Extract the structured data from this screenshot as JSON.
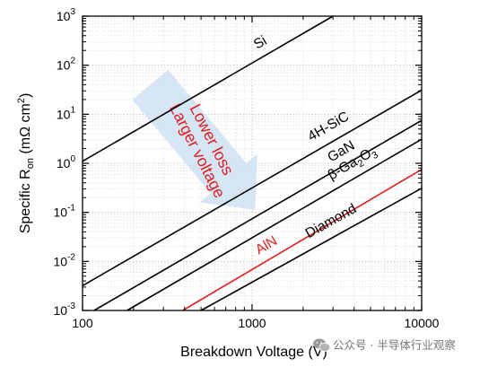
{
  "chart_data": {
    "type": "line",
    "xlabel": "Breakdown Voltage (V)",
    "ylabel": {
      "prefix": "Specific R",
      "sub": "on",
      "unit_open": " (mΩ cm",
      "sup": "2",
      "unit_close": ")"
    },
    "x_scale": "log",
    "y_scale": "log",
    "xlim": [
      100,
      10000
    ],
    "ylim": [
      0.001,
      1000
    ],
    "grid": true,
    "x_ticks": [
      {
        "value": 100,
        "label": "100"
      },
      {
        "value": 1000,
        "label": "1000"
      },
      {
        "value": 10000,
        "label": "10000"
      }
    ],
    "y_ticks": [
      {
        "value": 1000,
        "base": "10",
        "exp": "3"
      },
      {
        "value": 100,
        "base": "10",
        "exp": "2"
      },
      {
        "value": 10,
        "base": "10",
        "exp": "1"
      },
      {
        "value": 1,
        "base": "10",
        "exp": "0"
      },
      {
        "value": 0.1,
        "base": "10",
        "exp": "-1"
      },
      {
        "value": 0.01,
        "base": "10",
        "exp": "-2"
      },
      {
        "value": 0.001,
        "base": "10",
        "exp": "-3"
      }
    ],
    "series": [
      {
        "name": "Si",
        "color": "#000000",
        "x": [
          100,
          3000
        ],
        "y": [
          1.1,
          1000
        ]
      },
      {
        "name": "4H-SiC",
        "color": "#000000",
        "x": [
          100,
          10000
        ],
        "y": [
          0.0032,
          31
        ]
      },
      {
        "name": "GaN",
        "color": "#000000",
        "x": [
          117,
          10000
        ],
        "y": [
          0.001,
          7.5
        ]
      },
      {
        "name": "β-Ga2O3",
        "color": "#000000",
        "x": [
          183,
          10000
        ],
        "y": [
          0.001,
          3.1
        ],
        "label_parts": {
          "pre": "β-Ga",
          "sub1": "2",
          "mid": "O",
          "sub2": "3"
        }
      },
      {
        "name": "AlN",
        "color": "#e02020",
        "x": [
          390,
          10000
        ],
        "y": [
          0.001,
          0.75
        ]
      },
      {
        "name": "Diamond",
        "color": "#000000",
        "x": [
          500,
          10000
        ],
        "y": [
          0.001,
          0.31
        ]
      }
    ],
    "annotation": {
      "line1": "Lower loss",
      "line2": "Larger voltage",
      "text_color": "#e02020",
      "arrow_color": "#cfe2f3"
    }
  },
  "watermark": {
    "icon": "wechat-icon",
    "text": "公众号 · 半导体行业观察"
  }
}
